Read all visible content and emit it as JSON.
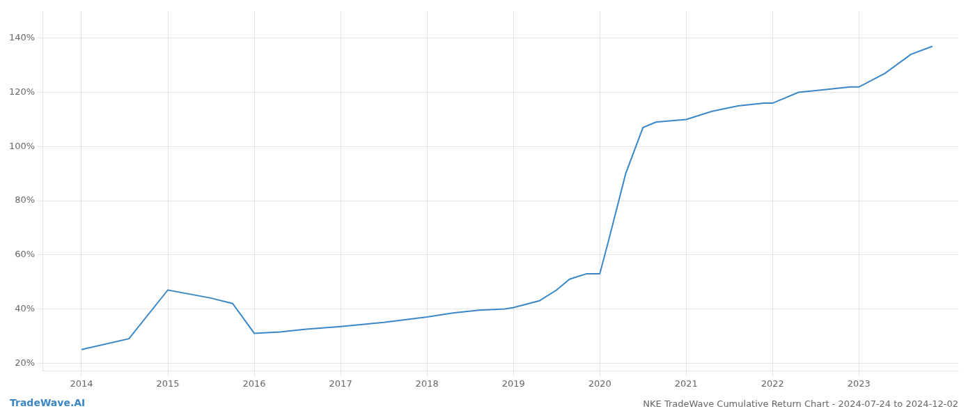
{
  "chart_data": {
    "type": "line",
    "title": "NKE TradeWave Cumulative Return Chart - 2024-07-24 to 2024-12-02",
    "annotations": [
      "TradeWave.AI"
    ],
    "x": [
      2014.0,
      2014.55,
      2015.0,
      2015.5,
      2015.75,
      2016.0,
      2016.3,
      2016.6,
      2017.0,
      2017.5,
      2018.0,
      2018.3,
      2018.6,
      2018.9,
      2019.0,
      2019.3,
      2019.5,
      2019.65,
      2019.75,
      2019.85,
      2020.0,
      2020.1,
      2020.3,
      2020.5,
      2020.65,
      2021.0,
      2021.3,
      2021.6,
      2021.9,
      2022.0,
      2022.3,
      2022.6,
      2022.9,
      2023.0,
      2023.3,
      2023.6,
      2023.85
    ],
    "values": [
      25,
      29,
      47,
      44,
      42,
      31,
      31.5,
      32.5,
      33.5,
      35,
      37,
      38.5,
      39.5,
      40,
      40.5,
      43,
      47,
      51,
      52,
      53,
      53,
      65,
      90,
      107,
      109,
      110,
      113,
      115,
      116,
      116,
      120,
      121,
      122,
      122,
      127,
      134,
      137
    ],
    "color": "#3a87c8",
    "xlim": [
      2013.55,
      2024.15
    ],
    "xticks": [
      2014,
      2015,
      2016,
      2017,
      2018,
      2019,
      2020,
      2021,
      2022,
      2023
    ],
    "ylim": [
      17,
      150
    ],
    "yticks": [
      {
        "value": 20,
        "label": "20%"
      },
      {
        "value": 40,
        "label": "40%"
      },
      {
        "value": 60,
        "label": "60%"
      },
      {
        "value": 80,
        "label": "80%"
      },
      {
        "value": 100,
        "label": "100%"
      },
      {
        "value": 120,
        "label": "120%"
      },
      {
        "value": 140,
        "label": "140%"
      }
    ],
    "grid": true
  }
}
